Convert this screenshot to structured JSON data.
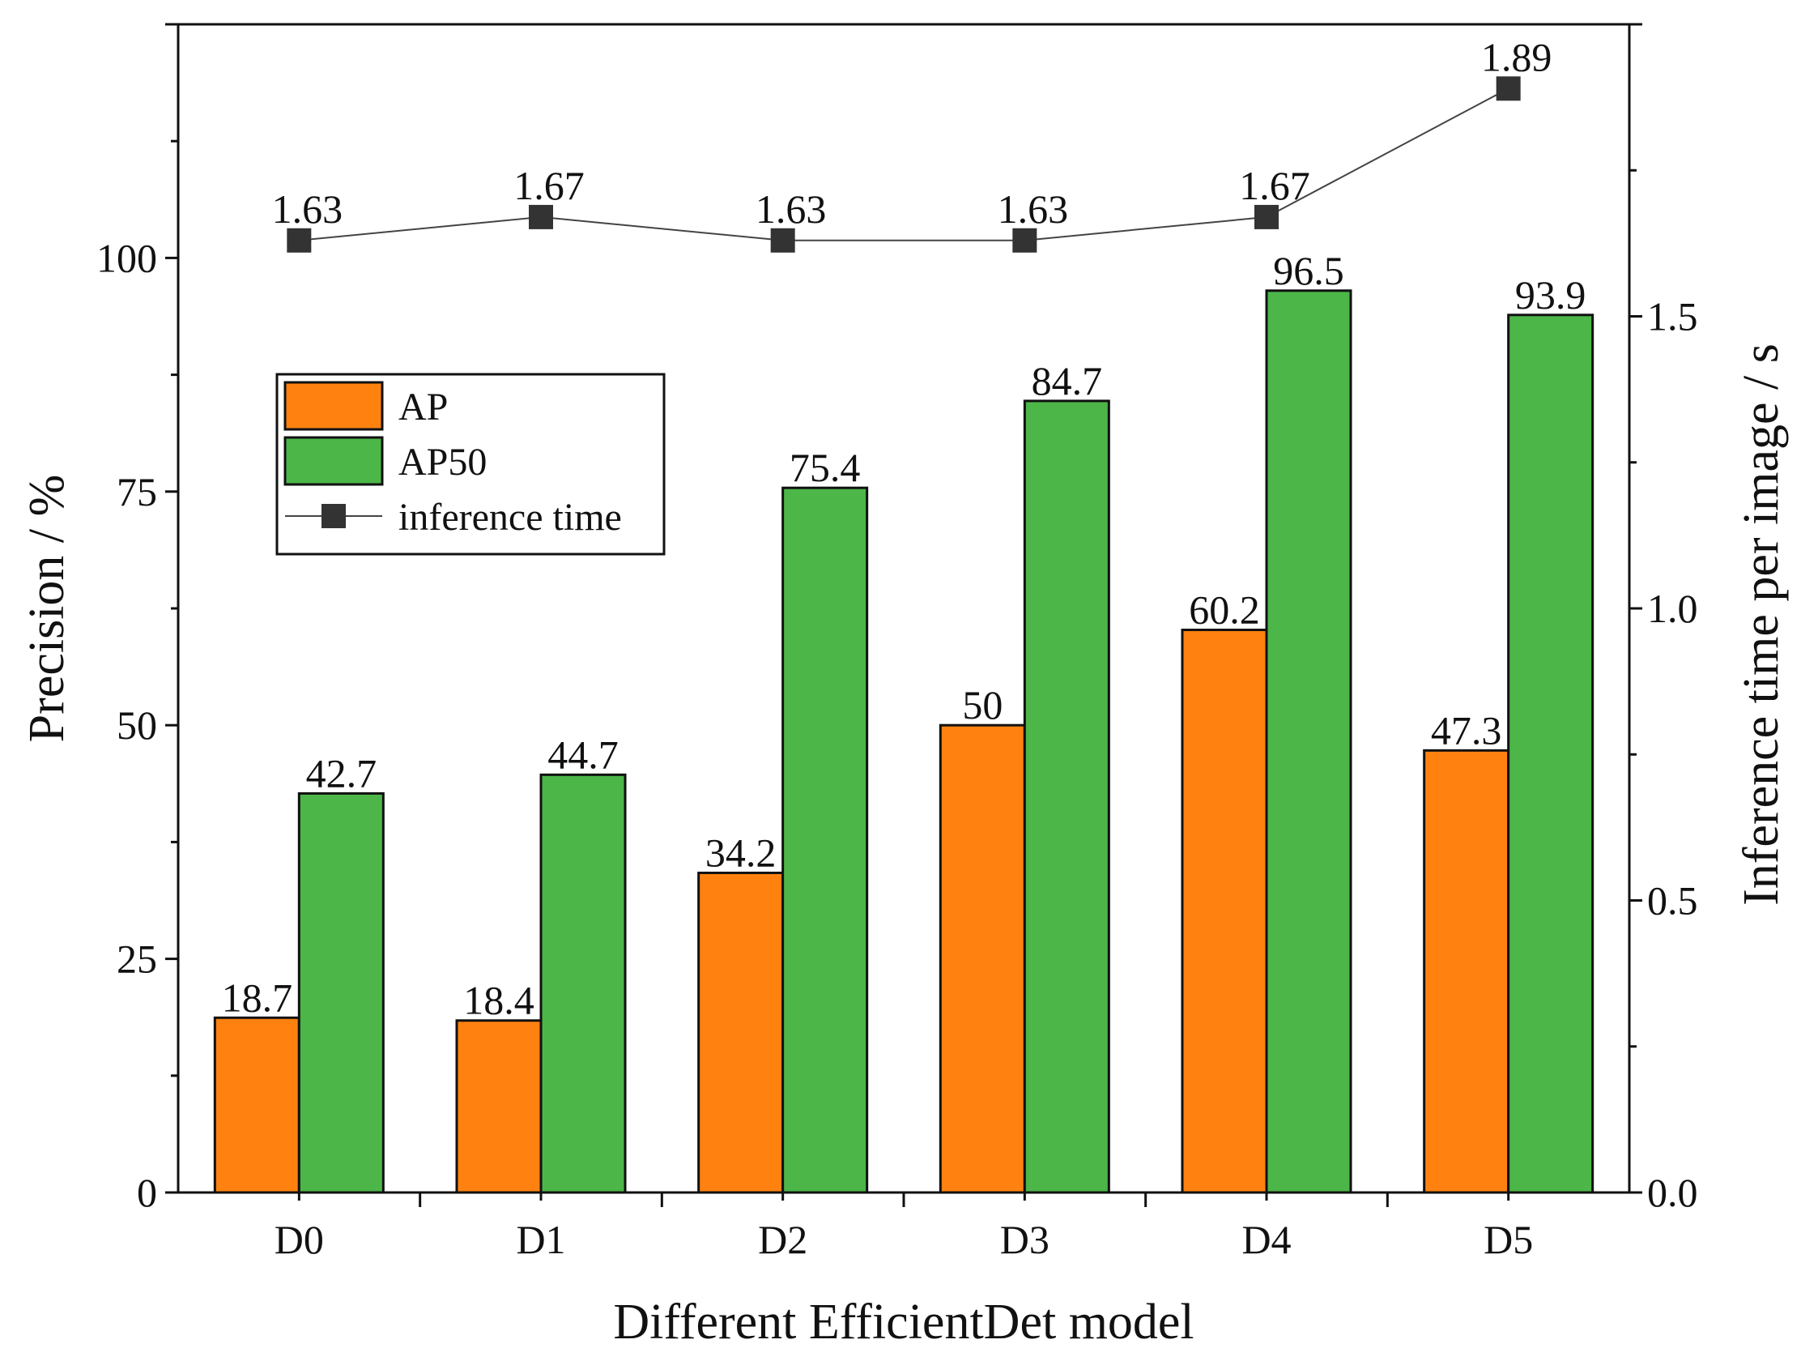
{
  "chart_data": {
    "type": "bar",
    "categories": [
      "D0",
      "D1",
      "D2",
      "D3",
      "D4",
      "D5"
    ],
    "series": [
      {
        "name": "AP",
        "kind": "bar",
        "axis": "left",
        "color": "#FF8210",
        "values": [
          18.7,
          18.4,
          34.2,
          50,
          60.2,
          47.3
        ],
        "labels": [
          "18.7",
          "18.4",
          "34.2",
          "50",
          "60.2",
          "47.3"
        ]
      },
      {
        "name": "AP50",
        "kind": "bar",
        "axis": "left",
        "color": "#4CB648",
        "values": [
          42.7,
          44.7,
          75.4,
          84.7,
          96.5,
          93.9
        ],
        "labels": [
          "42.7",
          "44.7",
          "75.4",
          "84.7",
          "96.5",
          "93.9"
        ]
      },
      {
        "name": "inference time",
        "kind": "line",
        "axis": "right",
        "color": "#333333",
        "values": [
          1.63,
          1.67,
          1.63,
          1.63,
          1.67,
          1.89
        ],
        "labels": [
          "1.63",
          "1.67",
          "1.63",
          "1.63",
          "1.67",
          "1.89"
        ]
      }
    ],
    "xlabel": "Different EfficientDet model",
    "ylabel": "Precision / %",
    "y2label": "Inference time per image / s",
    "ylim": [
      0,
      125
    ],
    "y2lim": [
      0,
      2.0
    ],
    "yticks": [
      0,
      25,
      50,
      75,
      100
    ],
    "ytick_labels": [
      "0",
      "25",
      "50",
      "75",
      "100"
    ],
    "y2ticks": [
      0,
      0.5,
      1.0,
      1.5
    ],
    "y2tick_labels": [
      "0.0",
      "0.5",
      "1.0",
      "1.5"
    ],
    "legend_position": "upper-left",
    "grid": false
  }
}
